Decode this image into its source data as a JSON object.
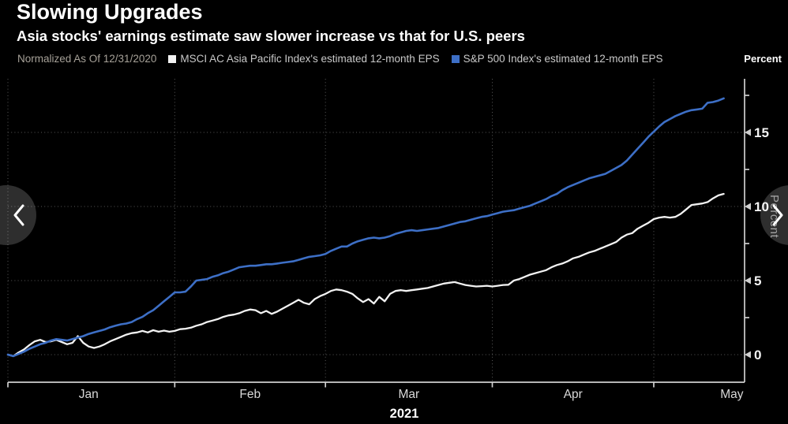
{
  "header": {
    "title": "Slowing Upgrades",
    "subtitle": "Asia stocks' earnings estimate saw slower increase vs that for U.S. peers"
  },
  "legend": {
    "note": "Normalized As Of 12/31/2020",
    "items": [
      {
        "label": "MSCI AC Asia Pacific Index's estimated 12-month EPS"
      },
      {
        "label": "S&P 500 Index's estimated 12-month EPS"
      }
    ]
  },
  "colors": {
    "background": "#000000",
    "asia_line": "#f2f2f2",
    "sp500_line": "#3d6fc6",
    "axis": "#cfcfcf",
    "gridline": "#585858",
    "note_text": "#a6a198"
  },
  "chart_data": {
    "type": "line",
    "title": "Slowing Upgrades",
    "subtitle": "Asia stocks' earnings estimate saw slower increase vs that for U.S. peers",
    "normalized_note": "Normalized As Of 12/31/2020",
    "x_axis": {
      "year_label": "2021",
      "unit": "day of 2021 (Jan 1 = 1)",
      "month_start_days": [
        1,
        32,
        60,
        91,
        121
      ],
      "months": [
        {
          "label": "Jan",
          "day": 16
        },
        {
          "label": "Feb",
          "day": 46
        },
        {
          "label": "Mar",
          "day": 75.5
        },
        {
          "label": "Apr",
          "day": 106
        },
        {
          "label": "May",
          "day": 135.5
        }
      ],
      "grid": "dotted"
    },
    "y_axis": {
      "label": "Percent",
      "side": "right",
      "major_ticks": [
        0,
        5,
        10,
        15
      ],
      "minor_ticks": [
        2.5,
        7.5,
        12.5,
        17.5
      ],
      "ylim_shown": [
        -1.85,
        18.6
      ],
      "grid": "dotted"
    },
    "series": [
      {
        "name": "MSCI AC Asia Pacific Index's estimated 12-month EPS",
        "color": "#f2f2f2",
        "points": [
          [
            1,
            0
          ],
          [
            2,
            -0.1
          ],
          [
            3,
            0.15
          ],
          [
            4,
            0.35
          ],
          [
            5,
            0.65
          ],
          [
            6,
            0.9
          ],
          [
            7,
            1
          ],
          [
            8,
            0.85
          ],
          [
            9,
            0.9
          ],
          [
            10,
            1
          ],
          [
            11,
            0.85
          ],
          [
            12,
            0.7
          ],
          [
            13,
            0.8
          ],
          [
            14,
            1.25
          ],
          [
            15,
            0.8
          ],
          [
            16,
            0.55
          ],
          [
            17,
            0.45
          ],
          [
            18,
            0.55
          ],
          [
            19,
            0.7
          ],
          [
            20,
            0.9
          ],
          [
            21,
            1.05
          ],
          [
            22,
            1.2
          ],
          [
            23,
            1.35
          ],
          [
            24,
            1.45
          ],
          [
            25,
            1.5
          ],
          [
            26,
            1.6
          ],
          [
            27,
            1.5
          ],
          [
            28,
            1.65
          ],
          [
            29,
            1.55
          ],
          [
            30,
            1.62
          ],
          [
            31,
            1.55
          ],
          [
            32,
            1.6
          ],
          [
            33,
            1.72
          ],
          [
            34,
            1.75
          ],
          [
            35,
            1.82
          ],
          [
            36,
            1.95
          ],
          [
            37,
            2.05
          ],
          [
            38,
            2.2
          ],
          [
            39,
            2.3
          ],
          [
            40,
            2.4
          ],
          [
            41,
            2.55
          ],
          [
            42,
            2.65
          ],
          [
            43,
            2.7
          ],
          [
            44,
            2.8
          ],
          [
            45,
            2.95
          ],
          [
            46,
            3.05
          ],
          [
            47,
            3
          ],
          [
            48,
            2.8
          ],
          [
            49,
            2.95
          ],
          [
            50,
            2.75
          ],
          [
            51,
            2.9
          ],
          [
            52,
            3.1
          ],
          [
            53,
            3.3
          ],
          [
            54,
            3.5
          ],
          [
            55,
            3.7
          ],
          [
            56,
            3.5
          ],
          [
            57,
            3.4
          ],
          [
            58,
            3.75
          ],
          [
            59,
            3.95
          ],
          [
            60,
            4.1
          ],
          [
            61,
            4.3
          ],
          [
            62,
            4.4
          ],
          [
            63,
            4.35
          ],
          [
            64,
            4.25
          ],
          [
            65,
            4.1
          ],
          [
            66,
            3.8
          ],
          [
            67,
            3.55
          ],
          [
            68,
            3.75
          ],
          [
            69,
            3.45
          ],
          [
            70,
            3.9
          ],
          [
            71,
            3.6
          ],
          [
            72,
            4.1
          ],
          [
            73,
            4.3
          ],
          [
            74,
            4.35
          ],
          [
            75,
            4.3
          ],
          [
            76,
            4.35
          ],
          [
            77,
            4.4
          ],
          [
            78,
            4.45
          ],
          [
            79,
            4.5
          ],
          [
            80,
            4.6
          ],
          [
            81,
            4.7
          ],
          [
            82,
            4.8
          ],
          [
            83,
            4.85
          ],
          [
            84,
            4.9
          ],
          [
            85,
            4.8
          ],
          [
            86,
            4.7
          ],
          [
            87,
            4.65
          ],
          [
            88,
            4.6
          ],
          [
            89,
            4.62
          ],
          [
            90,
            4.65
          ],
          [
            91,
            4.6
          ],
          [
            92,
            4.65
          ],
          [
            93,
            4.7
          ],
          [
            94,
            4.72
          ],
          [
            95,
            5
          ],
          [
            96,
            5.1
          ],
          [
            97,
            5.25
          ],
          [
            98,
            5.4
          ],
          [
            99,
            5.5
          ],
          [
            100,
            5.6
          ],
          [
            101,
            5.7
          ],
          [
            102,
            5.9
          ],
          [
            103,
            6.05
          ],
          [
            104,
            6.15
          ],
          [
            105,
            6.3
          ],
          [
            106,
            6.5
          ],
          [
            107,
            6.6
          ],
          [
            108,
            6.75
          ],
          [
            109,
            6.9
          ],
          [
            110,
            7
          ],
          [
            111,
            7.15
          ],
          [
            112,
            7.3
          ],
          [
            113,
            7.45
          ],
          [
            114,
            7.6
          ],
          [
            115,
            7.9
          ],
          [
            116,
            8.1
          ],
          [
            117,
            8.2
          ],
          [
            118,
            8.5
          ],
          [
            119,
            8.7
          ],
          [
            120,
            8.9
          ],
          [
            121,
            9.15
          ],
          [
            122,
            9.25
          ],
          [
            123,
            9.3
          ],
          [
            124,
            9.25
          ],
          [
            125,
            9.3
          ],
          [
            126,
            9.5
          ],
          [
            127,
            9.8
          ],
          [
            128,
            10.1
          ],
          [
            129,
            10.15
          ],
          [
            130,
            10.2
          ],
          [
            131,
            10.3
          ],
          [
            132,
            10.55
          ],
          [
            133,
            10.75
          ],
          [
            134,
            10.85
          ]
        ]
      },
      {
        "name": "S&P 500 Index's estimated 12-month EPS",
        "color": "#3d6fc6",
        "points": [
          [
            1,
            0
          ],
          [
            2,
            -0.1
          ],
          [
            3,
            0.05
          ],
          [
            4,
            0.2
          ],
          [
            5,
            0.4
          ],
          [
            6,
            0.55
          ],
          [
            7,
            0.7
          ],
          [
            8,
            0.8
          ],
          [
            9,
            0.95
          ],
          [
            10,
            1.05
          ],
          [
            11,
            1
          ],
          [
            12,
            0.95
          ],
          [
            13,
            1.05
          ],
          [
            14,
            1.15
          ],
          [
            15,
            1.25
          ],
          [
            16,
            1.4
          ],
          [
            17,
            1.5
          ],
          [
            18,
            1.6
          ],
          [
            19,
            1.7
          ],
          [
            20,
            1.85
          ],
          [
            21,
            1.95
          ],
          [
            22,
            2.05
          ],
          [
            23,
            2.1
          ],
          [
            24,
            2.2
          ],
          [
            25,
            2.4
          ],
          [
            26,
            2.55
          ],
          [
            27,
            2.8
          ],
          [
            28,
            3
          ],
          [
            29,
            3.3
          ],
          [
            30,
            3.6
          ],
          [
            31,
            3.9
          ],
          [
            32,
            4.2
          ],
          [
            33,
            4.2
          ],
          [
            34,
            4.25
          ],
          [
            35,
            4.6
          ],
          [
            36,
            5
          ],
          [
            37,
            5.05
          ],
          [
            38,
            5.1
          ],
          [
            39,
            5.25
          ],
          [
            40,
            5.35
          ],
          [
            41,
            5.5
          ],
          [
            42,
            5.6
          ],
          [
            43,
            5.75
          ],
          [
            44,
            5.9
          ],
          [
            45,
            5.95
          ],
          [
            46,
            6
          ],
          [
            47,
            6
          ],
          [
            48,
            6.05
          ],
          [
            49,
            6.1
          ],
          [
            50,
            6.1
          ],
          [
            51,
            6.15
          ],
          [
            52,
            6.2
          ],
          [
            53,
            6.25
          ],
          [
            54,
            6.3
          ],
          [
            55,
            6.4
          ],
          [
            56,
            6.5
          ],
          [
            57,
            6.6
          ],
          [
            58,
            6.65
          ],
          [
            59,
            6.7
          ],
          [
            60,
            6.8
          ],
          [
            61,
            7
          ],
          [
            62,
            7.15
          ],
          [
            63,
            7.3
          ],
          [
            64,
            7.3
          ],
          [
            65,
            7.5
          ],
          [
            66,
            7.65
          ],
          [
            67,
            7.75
          ],
          [
            68,
            7.85
          ],
          [
            69,
            7.9
          ],
          [
            70,
            7.85
          ],
          [
            71,
            7.9
          ],
          [
            72,
            8
          ],
          [
            73,
            8.15
          ],
          [
            74,
            8.25
          ],
          [
            75,
            8.35
          ],
          [
            76,
            8.4
          ],
          [
            77,
            8.35
          ],
          [
            78,
            8.4
          ],
          [
            79,
            8.45
          ],
          [
            80,
            8.5
          ],
          [
            81,
            8.55
          ],
          [
            82,
            8.65
          ],
          [
            83,
            8.75
          ],
          [
            84,
            8.85
          ],
          [
            85,
            8.95
          ],
          [
            86,
            9
          ],
          [
            87,
            9.1
          ],
          [
            88,
            9.2
          ],
          [
            89,
            9.3
          ],
          [
            90,
            9.35
          ],
          [
            91,
            9.45
          ],
          [
            92,
            9.55
          ],
          [
            93,
            9.65
          ],
          [
            94,
            9.7
          ],
          [
            95,
            9.75
          ],
          [
            96,
            9.85
          ],
          [
            97,
            9.95
          ],
          [
            98,
            10.05
          ],
          [
            99,
            10.2
          ],
          [
            100,
            10.35
          ],
          [
            101,
            10.5
          ],
          [
            102,
            10.7
          ],
          [
            103,
            10.85
          ],
          [
            104,
            11.1
          ],
          [
            105,
            11.3
          ],
          [
            106,
            11.45
          ],
          [
            107,
            11.6
          ],
          [
            108,
            11.75
          ],
          [
            109,
            11.9
          ],
          [
            110,
            12
          ],
          [
            111,
            12.1
          ],
          [
            112,
            12.2
          ],
          [
            113,
            12.4
          ],
          [
            114,
            12.6
          ],
          [
            115,
            12.8
          ],
          [
            116,
            13.1
          ],
          [
            117,
            13.5
          ],
          [
            118,
            13.9
          ],
          [
            119,
            14.3
          ],
          [
            120,
            14.7
          ],
          [
            121,
            15.05
          ],
          [
            122,
            15.4
          ],
          [
            123,
            15.7
          ],
          [
            124,
            15.9
          ],
          [
            125,
            16.1
          ],
          [
            126,
            16.25
          ],
          [
            127,
            16.4
          ],
          [
            128,
            16.5
          ],
          [
            129,
            16.55
          ],
          [
            130,
            16.6
          ],
          [
            131,
            17
          ],
          [
            132,
            17.05
          ],
          [
            133,
            17.15
          ],
          [
            134,
            17.3
          ]
        ]
      }
    ],
    "legend_position": "top",
    "last_values": {
      "asia": 10.85,
      "sp500": 17.3
    }
  }
}
